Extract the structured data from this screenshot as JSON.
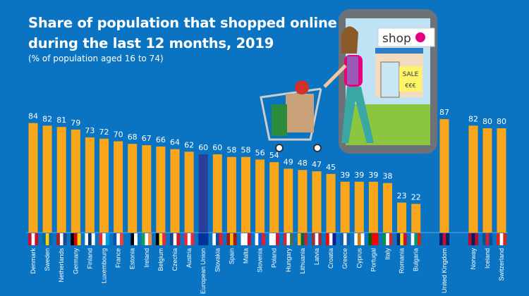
{
  "chart_data": {
    "type": "bar",
    "title_line1": "Share of population that shopped online",
    "title_line2": "during the last 12 months, 2019",
    "subtitle": "(% of population aged 16 to 74)",
    "ylim": [
      0,
      100
    ],
    "grid": false,
    "colors": {
      "bar": "#f9a61a",
      "eu_bar": "#2b3f99",
      "background": "#0a74c3"
    },
    "categories": [
      "Denmark",
      "Sweden",
      "Netherlands",
      "Germany",
      "Finland",
      "Luxembourg",
      "France",
      "Estonia",
      "Ireland",
      "Belgium",
      "Czechia",
      "Austria",
      "European Union",
      "Slovakia",
      "Spain",
      "Malta",
      "Slovenia",
      "Poland",
      "Hungary",
      "Lithuania",
      "Latvia",
      "Croatia",
      "Greece",
      "Cyprus",
      "Portugal",
      "Italy",
      "Romania",
      "Bulgaria",
      "United Kingdom",
      "Norway",
      "Iceland",
      "Switzerland"
    ],
    "values": [
      84,
      82,
      81,
      79,
      73,
      72,
      70,
      68,
      67,
      66,
      64,
      62,
      60,
      60,
      58,
      58,
      56,
      54,
      49,
      48,
      47,
      45,
      39,
      39,
      39,
      38,
      23,
      22,
      87,
      82,
      80,
      80
    ],
    "flags": [
      [
        "#c8102e",
        "#fff",
        "#c8102e"
      ],
      [
        "#006aa7",
        "#fecc00",
        "#006aa7"
      ],
      [
        "#ae1c28",
        "#fff",
        "#21468b"
      ],
      [
        "#000",
        "#dd0000",
        "#ffce00"
      ],
      [
        "#fff",
        "#003580",
        "#fff"
      ],
      [
        "#ed2939",
        "#fff",
        "#00a1de"
      ],
      [
        "#0055a4",
        "#fff",
        "#ef4135"
      ],
      [
        "#0072ce",
        "#000",
        "#fff"
      ],
      [
        "#169b62",
        "#fff",
        "#ff883e"
      ],
      [
        "#000",
        "#fae042",
        "#ed2939"
      ],
      [
        "#11457e",
        "#fff",
        "#d7141a"
      ],
      [
        "#ed2939",
        "#fff",
        "#ed2939"
      ],
      [
        "#003399",
        "#003399",
        "#003399"
      ],
      [
        "#fff",
        "#0b4ea2",
        "#ee1c25"
      ],
      [
        "#aa151b",
        "#f1bf00",
        "#aa151b"
      ],
      [
        "#fff",
        "#fff",
        "#cf142b"
      ],
      [
        "#fff",
        "#005ce5",
        "#ed1c24"
      ],
      [
        "#fff",
        "#fff",
        "#dc143c"
      ],
      [
        "#ce2939",
        "#fff",
        "#477050"
      ],
      [
        "#fdb913",
        "#006a44",
        "#c1272d"
      ],
      [
        "#9e3039",
        "#fff",
        "#9e3039"
      ],
      [
        "#ff0000",
        "#fff",
        "#171796"
      ],
      [
        "#0d5eaf",
        "#fff",
        "#0d5eaf"
      ],
      [
        "#fff",
        "#d57800",
        "#fff"
      ],
      [
        "#006600",
        "#ff0000",
        "#ff0000"
      ],
      [
        "#009246",
        "#fff",
        "#ce2b37"
      ],
      [
        "#002b7f",
        "#fcd116",
        "#ce1126"
      ],
      [
        "#fff",
        "#00966e",
        "#d62612"
      ],
      [
        "#012169",
        "#c8102e",
        "#012169"
      ],
      [
        "#ba0c2f",
        "#00205b",
        "#ba0c2f"
      ],
      [
        "#02529c",
        "#dc1e35",
        "#02529c"
      ],
      [
        "#da291c",
        "#fff",
        "#da291c"
      ]
    ]
  },
  "illustration": {
    "shop_sign": "shop",
    "sale_sign": "SALE",
    "price_sign": "€€€"
  }
}
